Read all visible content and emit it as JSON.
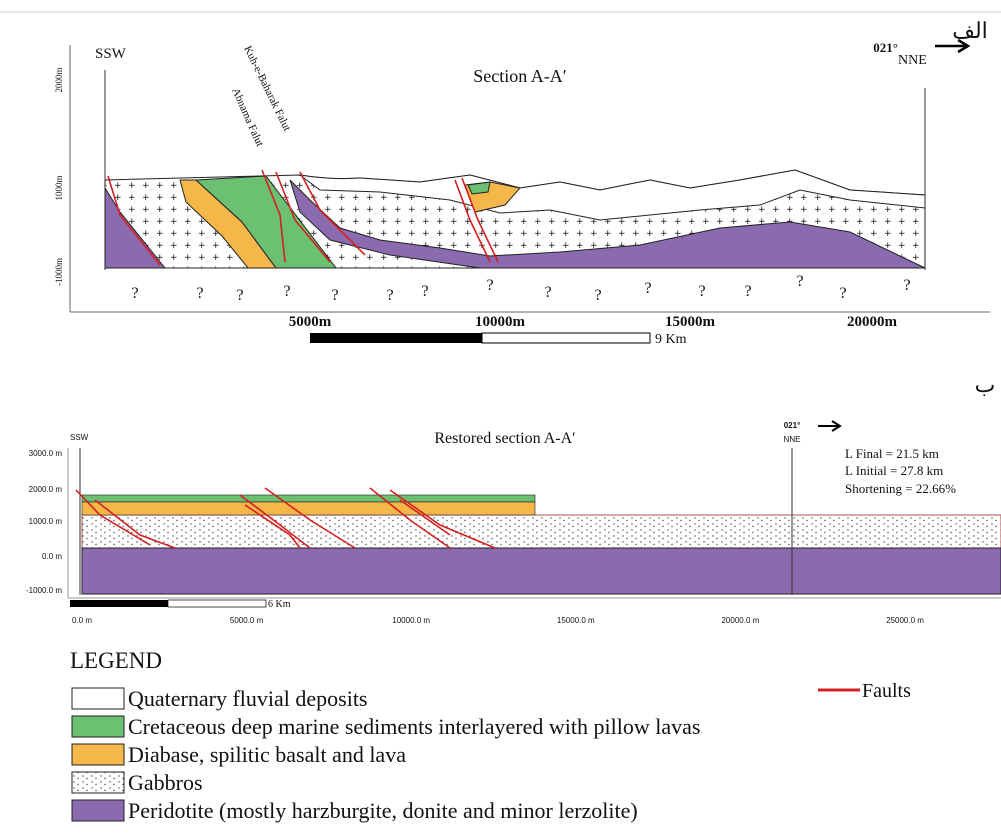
{
  "panel_a": {
    "label": "الف",
    "title": "Section A-A′",
    "left_direction": "SSW",
    "azimuth": "021°",
    "right_direction": "NNE",
    "depth_labels": [
      "2000m",
      "1000m",
      "-1000m"
    ],
    "faults": [
      "Kuh-e-Baharak Falut",
      "Abnama Falut"
    ],
    "unknowns": [
      "?",
      "?",
      "?",
      "?",
      "?",
      "?",
      "?",
      "?",
      "?",
      "?",
      "?",
      "?",
      "?",
      "?",
      "?",
      "?"
    ],
    "distance_labels": [
      "5000m",
      "10000m",
      "15000m",
      "20000m"
    ],
    "scale": "9 Km"
  },
  "panel_b": {
    "label": "ب",
    "title": "Restored section A-A′",
    "left_direction": "SSW",
    "azimuth": "021°",
    "right_direction": "NNE",
    "notes": [
      "L Final = 21.5 km",
      "L Initial = 27.8 km",
      "Shortening = 22.66%"
    ],
    "depth_labels": [
      "3000.0 m",
      "2000.0 m",
      "1000.0 m",
      "0.0 m",
      "-1000.0 m"
    ],
    "distance_labels": [
      "0.0 m",
      "5000.0 m",
      "10000.0 m",
      "15000.0 m",
      "20000.0 m",
      "25000.0 m"
    ],
    "scale": "6 Km"
  },
  "legend": {
    "title": "LEGEND",
    "items": [
      "Quaternary fluvial deposits",
      "Cretaceous deep marine sediments interlayered with pillow lavas",
      "Diabase, spilitic basalt and lava",
      "Gabbros",
      "Peridotite (mostly harzburgite, donite and minor lerzolite)"
    ],
    "faults": "Faults"
  }
}
